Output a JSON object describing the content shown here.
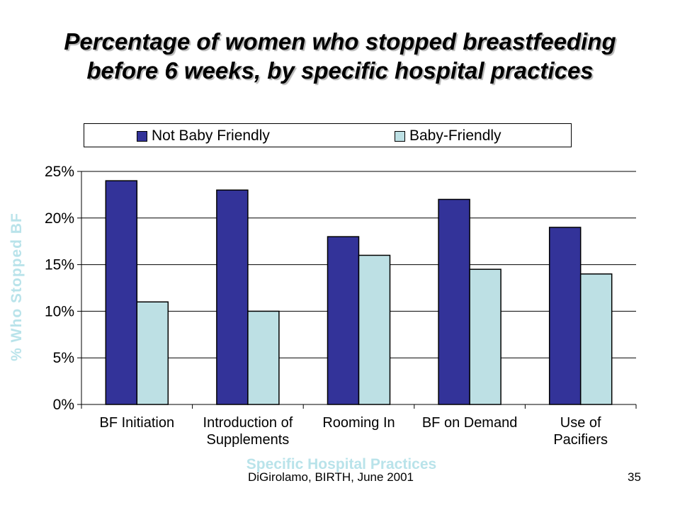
{
  "title_lines": [
    "Percentage of women who stopped breastfeeding",
    "before 6 weeks, by specific hospital practices"
  ],
  "footer": {
    "citation": "DiGirolamo, BIRTH, June 2001",
    "page_number": "35"
  },
  "colors": {
    "not_baby_friendly": "#333399",
    "baby_friendly": "#bde0e4",
    "gridline": "#000000",
    "axis_title": "#b9e3ea"
  },
  "chart_data": {
    "type": "bar",
    "title": "",
    "xlabel": "Specific Hospital Practices",
    "ylabel": "% Who Stopped BF",
    "ylim": [
      0,
      25
    ],
    "y_ticks": [
      "0%",
      "5%",
      "10%",
      "15%",
      "20%",
      "25%"
    ],
    "y_tick_values": [
      0,
      5,
      10,
      15,
      20,
      25
    ],
    "grid": true,
    "legend_position": "top",
    "categories": [
      [
        "BF Initiation"
      ],
      [
        "Introduction of",
        "Supplements"
      ],
      [
        "Rooming In"
      ],
      [
        "BF on Demand"
      ],
      [
        "Use of",
        "Pacifiers"
      ]
    ],
    "series": [
      {
        "name": "Not Baby Friendly",
        "values": [
          24,
          23,
          18,
          22,
          19
        ]
      },
      {
        "name": "Baby-Friendly",
        "values": [
          11,
          10,
          16,
          14.5,
          14
        ]
      }
    ]
  }
}
